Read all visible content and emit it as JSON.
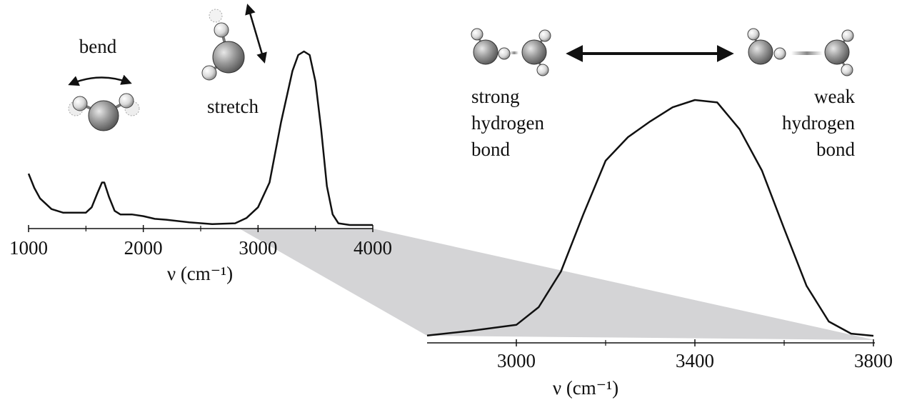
{
  "chart_data": [
    {
      "type": "line",
      "annotations": [
        "bend",
        "stretch"
      ],
      "x_label": "ν (cm⁻¹)",
      "x": [
        1000,
        1050,
        1100,
        1200,
        1300,
        1400,
        1500,
        1550,
        1600,
        1640,
        1660,
        1700,
        1750,
        1800,
        1900,
        2000,
        2100,
        2200,
        2400,
        2600,
        2800,
        2900,
        3000,
        3100,
        3200,
        3300,
        3350,
        3400,
        3450,
        3500,
        3550,
        3600,
        3650,
        3700,
        3800,
        4000
      ],
      "values": [
        0.31,
        0.23,
        0.17,
        0.11,
        0.09,
        0.09,
        0.09,
        0.12,
        0.2,
        0.26,
        0.26,
        0.18,
        0.1,
        0.08,
        0.08,
        0.07,
        0.055,
        0.05,
        0.035,
        0.025,
        0.03,
        0.06,
        0.12,
        0.26,
        0.6,
        0.89,
        0.98,
        1.0,
        0.98,
        0.83,
        0.56,
        0.24,
        0.08,
        0.03,
        0.02,
        0.02
      ],
      "color": "#111111",
      "xlim": [
        1000,
        4000
      ],
      "ylim": [
        0,
        1
      ],
      "xticks": [
        1000,
        2000,
        3000,
        4000
      ],
      "xticks_minor": [
        1500,
        2500,
        3500
      ]
    },
    {
      "type": "line",
      "annotations": [
        [
          "strong",
          "hydrogen",
          "bond"
        ],
        [
          "weak",
          "hydrogen",
          "bond"
        ]
      ],
      "x_label": "ν (cm⁻¹)",
      "x": [
        2800,
        2900,
        3000,
        3050,
        3100,
        3150,
        3200,
        3250,
        3300,
        3350,
        3400,
        3450,
        3500,
        3550,
        3600,
        3650,
        3700,
        3750,
        3800
      ],
      "values": [
        0.03,
        0.05,
        0.074,
        0.147,
        0.294,
        0.529,
        0.75,
        0.847,
        0.912,
        0.97,
        1.0,
        0.99,
        0.88,
        0.71,
        0.47,
        0.235,
        0.088,
        0.038,
        0.029
      ],
      "color": "#111111",
      "xlim": [
        2800,
        3800
      ],
      "ylim": [
        0,
        1
      ],
      "xticks": [
        3000,
        3400,
        3800
      ],
      "xticks_minor": [
        3200,
        3600
      ]
    }
  ]
}
